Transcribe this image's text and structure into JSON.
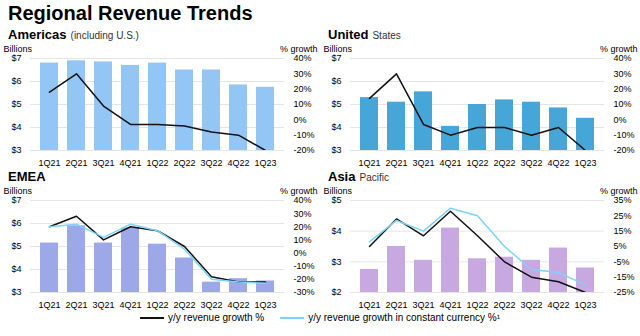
{
  "title": "Regional Revenue Trends",
  "legend": "bottom",
  "chart_data": [
    {
      "type": "bar",
      "title": "Americas",
      "subtitle": "(including U.S.)",
      "categories": [
        "1Q21",
        "2Q21",
        "3Q21",
        "4Q21",
        "1Q22",
        "2Q22",
        "3Q22",
        "4Q22",
        "1Q23"
      ],
      "values": [
        6.8,
        6.9,
        6.85,
        6.7,
        6.8,
        6.5,
        6.5,
        5.85,
        5.75
      ],
      "color": "#93c6f4",
      "ylabel": "Billions",
      "y2label": "% growth",
      "ylim": [
        3,
        7
      ],
      "yticks": [
        {
          "value": 3,
          "label": "$3"
        },
        {
          "value": 4,
          "label": "$4"
        },
        {
          "value": 5,
          "label": "$5"
        },
        {
          "value": 6,
          "label": "$6"
        },
        {
          "value": 7,
          "label": "$7"
        }
      ],
      "y2lim": [
        -20,
        40
      ],
      "y2ticks": [
        {
          "value": -20,
          "label": "-20%"
        },
        {
          "value": -10,
          "label": "-10%"
        },
        {
          "value": 0,
          "label": "0%"
        },
        {
          "value": 10,
          "label": "10%"
        },
        {
          "value": 20,
          "label": "20%"
        },
        {
          "value": 30,
          "label": "30%"
        },
        {
          "value": 40,
          "label": "40%"
        }
      ],
      "grid": true,
      "series": [
        {
          "name": "y/y revenue growth %",
          "type": "line",
          "axis": "y2",
          "color": "#111111",
          "values": [
            18,
            30,
            9,
            -3,
            -3,
            -4,
            -8,
            -10,
            -20
          ]
        }
      ]
    },
    {
      "type": "bar",
      "title": "United",
      "subtitle": "States",
      "categories": [
        "1Q21",
        "2Q21",
        "3Q21",
        "4Q21",
        "1Q22",
        "2Q22",
        "3Q22",
        "4Q22",
        "1Q23"
      ],
      "values": [
        5.3,
        5.1,
        5.55,
        4.05,
        5.0,
        5.2,
        5.1,
        4.85,
        4.4
      ],
      "color": "#47a6d8",
      "ylabel": "Billions",
      "y2label": "% growth",
      "ylim": [
        3,
        7
      ],
      "yticks": [
        {
          "value": 3,
          "label": "$3"
        },
        {
          "value": 4,
          "label": "$4"
        },
        {
          "value": 5,
          "label": "$5"
        },
        {
          "value": 6,
          "label": "$6"
        },
        {
          "value": 7,
          "label": "$7"
        }
      ],
      "y2lim": [
        -20,
        40
      ],
      "y2ticks": [
        {
          "value": -20,
          "label": "-20%"
        },
        {
          "value": -10,
          "label": "-10%"
        },
        {
          "value": 0,
          "label": "0%"
        },
        {
          "value": 10,
          "label": "10%"
        },
        {
          "value": 20,
          "label": "20%"
        },
        {
          "value": 30,
          "label": "30%"
        },
        {
          "value": 40,
          "label": "40%"
        }
      ],
      "grid": true,
      "series": [
        {
          "name": "y/y revenue growth %",
          "type": "line",
          "axis": "y2",
          "color": "#111111",
          "values": [
            14,
            30,
            -3,
            -10,
            -5,
            -5,
            -10,
            -5,
            -20
          ]
        }
      ]
    },
    {
      "type": "bar",
      "title": "EMEA",
      "categories": [
        "1Q21",
        "2Q21",
        "3Q21",
        "4Q21",
        "1Q22",
        "2Q22",
        "3Q22",
        "4Q22",
        "1Q23"
      ],
      "values": [
        5.15,
        5.9,
        5.15,
        5.8,
        5.1,
        4.5,
        3.45,
        3.6,
        3.5
      ],
      "color": "#9da8e8",
      "ylabel": "Billions",
      "y2label": "% growth",
      "ylim": [
        3,
        7
      ],
      "yticks": [
        {
          "value": 3,
          "label": "$3"
        },
        {
          "value": 4,
          "label": "$4"
        },
        {
          "value": 5,
          "label": "$5"
        },
        {
          "value": 6,
          "label": "$6"
        },
        {
          "value": 7,
          "label": "$7"
        }
      ],
      "y2lim": [
        -30,
        40
      ],
      "y2ticks": [
        {
          "value": -30,
          "label": "-30%"
        },
        {
          "value": -20,
          "label": "-20%"
        },
        {
          "value": -10,
          "label": "-10%"
        },
        {
          "value": 0,
          "label": "0%"
        },
        {
          "value": 10,
          "label": "10%"
        },
        {
          "value": 20,
          "label": "20%"
        },
        {
          "value": 30,
          "label": "30%"
        },
        {
          "value": 40,
          "label": "40%"
        }
      ],
      "grid": true,
      "series": [
        {
          "name": "y/y revenue growth %",
          "type": "line",
          "axis": "y2",
          "color": "#111111",
          "values": [
            20,
            28,
            10,
            20,
            17,
            5,
            -18,
            -22,
            -22
          ]
        },
        {
          "name": "y/y revenue growth in constant currency %¹",
          "type": "line",
          "axis": "y2",
          "color": "#7dd3fc",
          "values": [
            20,
            22,
            12,
            22,
            17,
            3,
            -20,
            -22,
            -23
          ]
        }
      ]
    },
    {
      "type": "bar",
      "title": "Asia",
      "subtitle": "Pacific",
      "categories": [
        "1Q21",
        "2Q21",
        "3Q21",
        "4Q21",
        "1Q22",
        "2Q22",
        "3Q22",
        "4Q22",
        "1Q23"
      ],
      "values": [
        2.75,
        3.5,
        3.05,
        4.1,
        3.1,
        3.15,
        3.05,
        3.45,
        2.8
      ],
      "color": "#c8a8e0",
      "ylabel": "Billions",
      "y2label": "% growth",
      "ylim": [
        2,
        5
      ],
      "yticks": [
        {
          "value": 2,
          "label": "$2"
        },
        {
          "value": 3,
          "label": "$3"
        },
        {
          "value": 4,
          "label": "$4"
        },
        {
          "value": 5,
          "label": "$5"
        }
      ],
      "y2lim": [
        -25,
        35
      ],
      "y2ticks": [
        {
          "value": -25,
          "label": "-25%"
        },
        {
          "value": -15,
          "label": "-15%"
        },
        {
          "value": -5,
          "label": "-5%"
        },
        {
          "value": 5,
          "label": "5%"
        },
        {
          "value": 15,
          "label": "15%"
        },
        {
          "value": 25,
          "label": "25%"
        },
        {
          "value": 35,
          "label": "35%"
        }
      ],
      "grid": true,
      "series": [
        {
          "name": "y/y revenue growth %",
          "type": "line",
          "axis": "y2",
          "color": "#111111",
          "values": [
            5,
            23,
            12,
            28,
            12,
            -5,
            -15,
            -18,
            -25
          ]
        },
        {
          "name": "y/y revenue growth in constant currency %¹",
          "type": "line",
          "axis": "y2",
          "color": "#7dd3fc",
          "values": [
            8,
            22,
            15,
            30,
            25,
            5,
            -10,
            -12,
            -20
          ]
        }
      ]
    }
  ]
}
